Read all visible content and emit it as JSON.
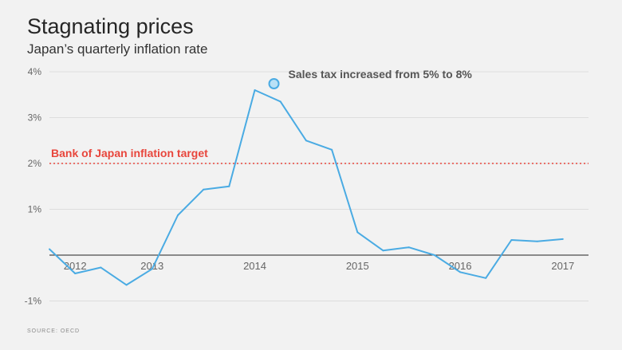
{
  "chart_data": {
    "type": "line",
    "title": "Stagnating prices",
    "subtitle": "Japan’s quarterly inflation rate",
    "source": "SOURCE: OECD",
    "ylim": [
      -1,
      4
    ],
    "y_ticks": [
      {
        "value": 4,
        "label": "4%"
      },
      {
        "value": 3,
        "label": "3%"
      },
      {
        "value": 2,
        "label": "2%"
      },
      {
        "value": 1,
        "label": "1%"
      },
      {
        "value": -1,
        "label": "-1%"
      }
    ],
    "x_ticks": [
      {
        "value": 2012.25,
        "label": "2012"
      },
      {
        "value": 2013,
        "label": "2013"
      },
      {
        "value": 2014,
        "label": "2014"
      },
      {
        "value": 2015,
        "label": "2015"
      },
      {
        "value": 2016,
        "label": "2016"
      },
      {
        "value": 2017,
        "label": "2017"
      }
    ],
    "xlim": [
      2012.0,
      2017.25
    ],
    "grid": true,
    "series": [
      {
        "color": "#4aabe3",
        "points": [
          [
            2012.0,
            0.13
          ],
          [
            2012.25,
            -0.4
          ],
          [
            2012.5,
            -0.27
          ],
          [
            2012.75,
            -0.65
          ],
          [
            2013.0,
            -0.3
          ],
          [
            2013.25,
            0.87
          ],
          [
            2013.5,
            1.43
          ],
          [
            2013.75,
            1.5
          ],
          [
            2014.0,
            3.6
          ],
          [
            2014.25,
            3.35
          ],
          [
            2014.5,
            2.5
          ],
          [
            2014.75,
            2.3
          ],
          [
            2015.0,
            0.5
          ],
          [
            2015.25,
            0.1
          ],
          [
            2015.5,
            0.17
          ],
          [
            2015.75,
            0.0
          ],
          [
            2016.0,
            -0.37
          ],
          [
            2016.25,
            -0.5
          ],
          [
            2016.5,
            0.33
          ],
          [
            2016.75,
            0.3
          ],
          [
            2017.0,
            0.35
          ]
        ]
      }
    ],
    "reference_line": {
      "value": 2,
      "label": "Bank of Japan inflation target",
      "color": "#e8463c"
    },
    "annotation": {
      "x": 2014.0,
      "y": 3.6,
      "label": "Sales tax increased from 5% to 8%"
    }
  }
}
